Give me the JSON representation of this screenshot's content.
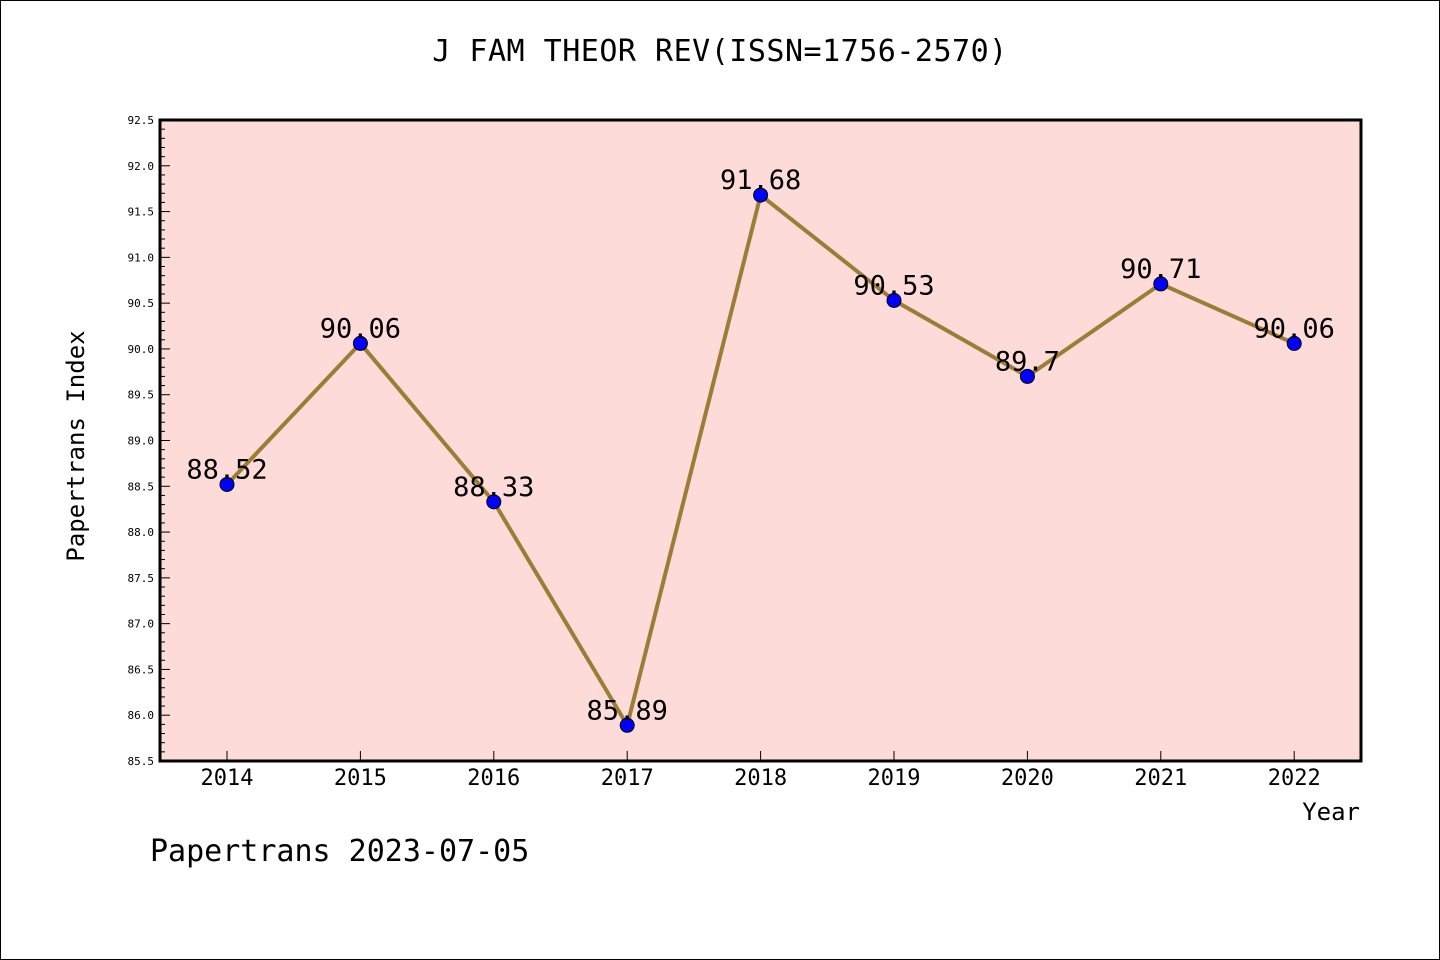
{
  "title": "J FAM THEOR REV(ISSN=1756-2570)",
  "footer": "Papertrans 2023-07-05",
  "colors": {
    "plot_background": "#fddbd8",
    "line": "#9b7d36",
    "marker": "#0000ff"
  },
  "chart_data": {
    "type": "line",
    "title": "J FAM THEOR REV(ISSN=1756-2570)",
    "xlabel": "Year",
    "ylabel": "Papertrans Index",
    "categories": [
      "2014",
      "2015",
      "2016",
      "2017",
      "2018",
      "2019",
      "2020",
      "2021",
      "2022"
    ],
    "series": [
      {
        "values": [
          88.52,
          90.06,
          88.33,
          85.89,
          91.68,
          90.53,
          89.7,
          90.71,
          90.06
        ],
        "labels": [
          "88.52",
          "90.06",
          "88.33",
          "85.89",
          "91.68",
          "90.53",
          "89.7",
          "90.71",
          "90.06"
        ]
      }
    ],
    "ylim": [
      85.5,
      92.5
    ],
    "yticks": [
      "85.5",
      "86.0",
      "86.5",
      "87.0",
      "87.5",
      "88.0",
      "88.5",
      "89.0",
      "89.5",
      "90.0",
      "90.5",
      "91.0",
      "91.5",
      "92.0",
      "92.5"
    ],
    "grid": false,
    "legend": "none"
  }
}
